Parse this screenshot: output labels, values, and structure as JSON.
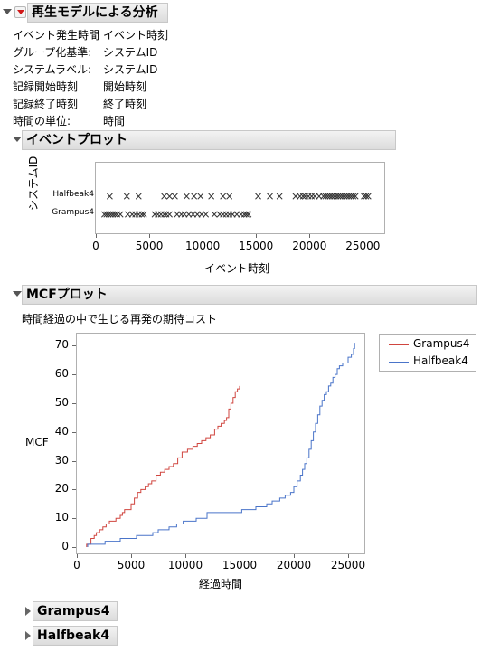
{
  "report": {
    "title": "再生モデルによる分析",
    "fields": [
      {
        "key": "イベント発生時間",
        "value": "イベント時刻"
      },
      {
        "key": "グループ化基準:",
        "value": "システムID"
      },
      {
        "key": "システムラベル:",
        "value": "システムID"
      },
      {
        "key": "記録開始時刻",
        "value": "開始時刻"
      },
      {
        "key": "記録終了時刻",
        "value": "終了時刻"
      },
      {
        "key": "時間の単位:",
        "value": "時間"
      }
    ]
  },
  "event_plot": {
    "title": "イベントプロット",
    "xlabel": "イベント時刻",
    "ylabel": "システムID",
    "systems": [
      "Halfbeak4",
      "Grampus4"
    ],
    "x_ticks": [
      "0",
      "5000",
      "10000",
      "15000",
      "20000",
      "25000"
    ]
  },
  "mcf_plot": {
    "title": "MCFプロット",
    "subtitle": "時間経過の中で生じる再発の期待コスト",
    "xlabel": "経過時間",
    "ylabel": "MCF",
    "x_ticks": [
      "0",
      "5000",
      "10000",
      "15000",
      "20000",
      "25000"
    ],
    "y_ticks": [
      "0",
      "10",
      "20",
      "30",
      "40",
      "50",
      "60",
      "70"
    ],
    "legend": [
      "Grampus4",
      "Halfbeak4"
    ]
  },
  "collapsed_sections": [
    "Grampus4",
    "Halfbeak4"
  ],
  "colors": {
    "grampus": "#d0453f",
    "halfbeak": "#4a74c9",
    "marker": "#333333"
  },
  "chart_data": [
    {
      "type": "scatter",
      "title": "イベントプロット",
      "xlabel": "イベント時刻",
      "ylabel": "システムID",
      "xlim": [
        0,
        27000
      ],
      "categories": [
        "Grampus4",
        "Halfbeak4"
      ],
      "series": [
        {
          "name": "Halfbeak4",
          "x": [
            1300,
            2900,
            4000,
            6400,
            6900,
            7400,
            8500,
            9200,
            9800,
            10800,
            11900,
            12500,
            15200,
            16300,
            17200,
            18700,
            19100,
            19400,
            19600,
            19900,
            20200,
            20500,
            20900,
            21300,
            21500,
            21700,
            21900,
            22100,
            22300,
            22500,
            22700,
            22900,
            23100,
            23300,
            23500,
            23700,
            23900,
            24100,
            24300,
            25100,
            25300,
            25500
          ]
        },
        {
          "name": "Grampus4",
          "x": [
            800,
            1000,
            1200,
            1400,
            1600,
            1800,
            2000,
            2300,
            3000,
            3400,
            3700,
            4000,
            4300,
            4500,
            5500,
            5800,
            6100,
            6400,
            6600,
            6900,
            7600,
            8000,
            8300,
            8700,
            9100,
            9500,
            9900,
            10300,
            11100,
            11600,
            11900,
            12200,
            12500,
            12800,
            13200,
            13600,
            13900,
            14100,
            14300
          ]
        }
      ]
    },
    {
      "type": "line",
      "title": "MCFプロット",
      "subtitle": "時間経過の中で生じる再発の期待コスト",
      "xlabel": "経過時間",
      "ylabel": "MCF",
      "xlim": [
        0,
        26500
      ],
      "ylim": [
        0,
        72
      ],
      "series": [
        {
          "name": "Grampus4",
          "x": [
            900,
            1300,
            1600,
            1800,
            2100,
            2400,
            2700,
            3000,
            3600,
            4000,
            4200,
            4400,
            5000,
            5300,
            5600,
            5900,
            6300,
            6600,
            6900,
            7300,
            7700,
            8100,
            8500,
            8900,
            9300,
            9700,
            10200,
            10700,
            11100,
            11500,
            11900,
            12300,
            12700,
            13000,
            13300,
            13600,
            13800,
            14000,
            14200,
            14400,
            14600,
            14800,
            15000
          ],
          "y": [
            1,
            3,
            4,
            5,
            6,
            7,
            8,
            9,
            10,
            11,
            12,
            13,
            15,
            17,
            19,
            20,
            21,
            22,
            23,
            25,
            26,
            27,
            28,
            29,
            31,
            33,
            34,
            35,
            36,
            37,
            38,
            39,
            41,
            42,
            43,
            44,
            45,
            48,
            50,
            52,
            54,
            55,
            56
          ]
        },
        {
          "name": "Halfbeak4",
          "x": [
            1000,
            2600,
            4000,
            5500,
            7000,
            7500,
            8500,
            9200,
            9800,
            11000,
            12000,
            14800,
            15200,
            16500,
            17500,
            18000,
            18700,
            19200,
            19700,
            20000,
            20300,
            20600,
            20800,
            21000,
            21200,
            21400,
            21600,
            21800,
            22000,
            22200,
            22400,
            22600,
            22800,
            23000,
            23200,
            23400,
            23600,
            23800,
            24000,
            24200,
            24500,
            25000,
            25300,
            25500,
            25600
          ],
          "y": [
            1,
            2,
            3,
            4,
            5,
            6,
            7,
            8,
            9,
            10,
            12,
            12,
            13,
            14,
            15,
            16,
            17,
            18,
            19,
            21,
            23,
            25,
            27,
            29,
            31,
            34,
            37,
            40,
            43,
            46,
            49,
            51,
            53,
            54,
            56,
            57,
            59,
            60,
            62,
            63,
            64,
            66,
            67,
            69,
            71
          ]
        }
      ]
    }
  ]
}
